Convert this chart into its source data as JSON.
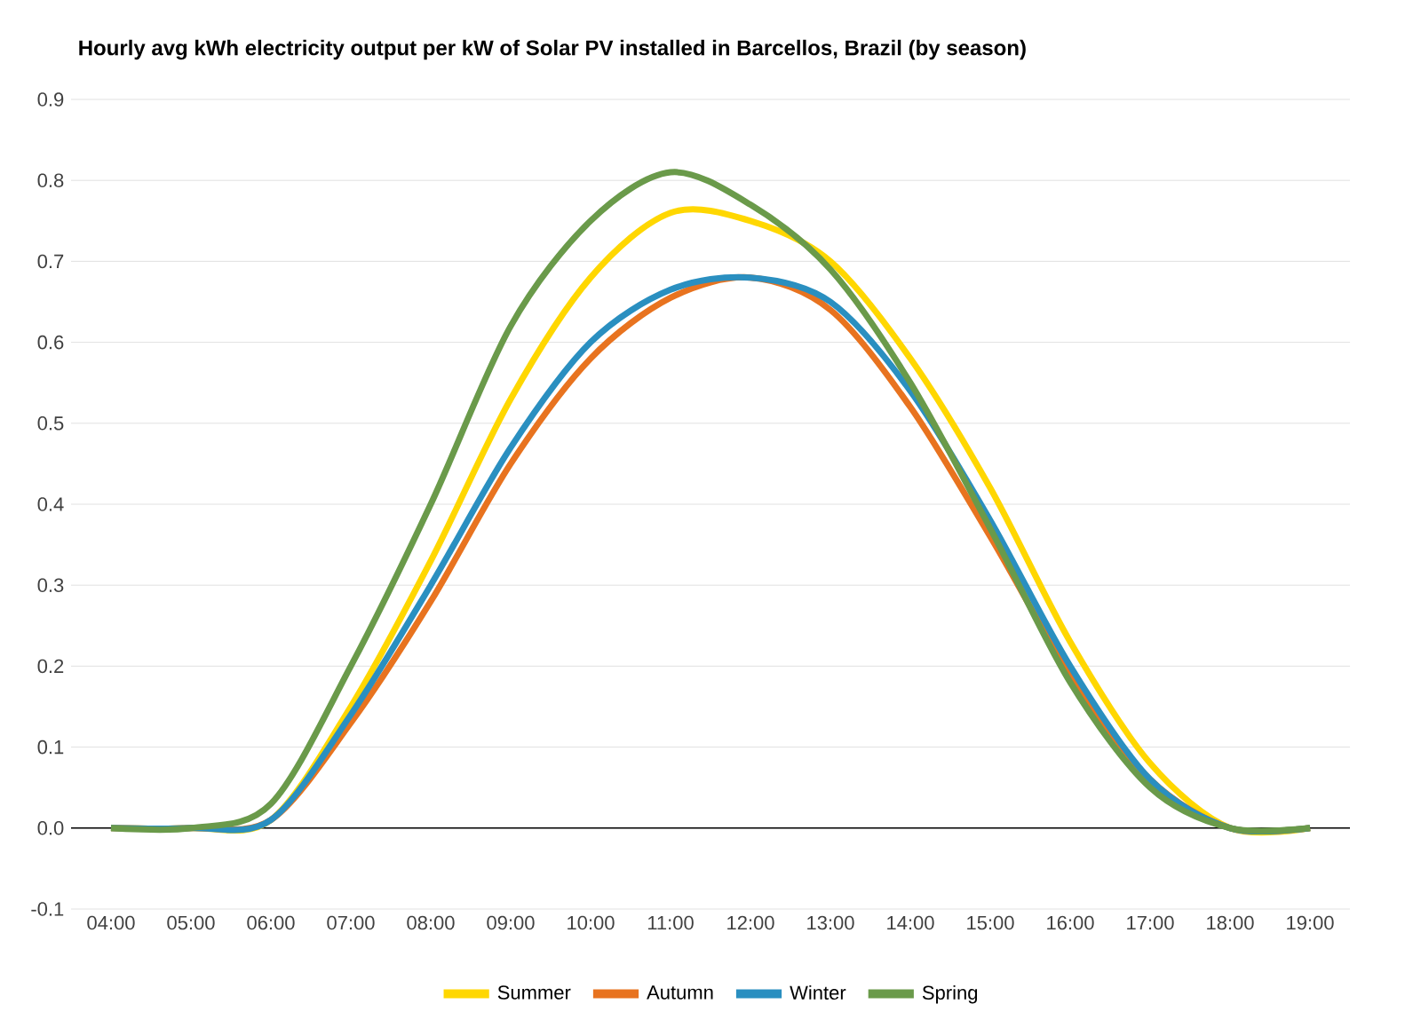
{
  "chart_data": {
    "type": "line",
    "title": "Hourly avg kWh electricity output per kW of Solar PV installed in Barcellos, Brazil (by season)",
    "x": [
      4,
      5,
      6,
      7,
      8,
      9,
      10,
      11,
      12,
      13,
      14,
      15,
      16,
      17,
      18,
      19
    ],
    "series": [
      {
        "name": "Summer",
        "color": "#ffd700",
        "values": [
          0,
          0,
          0.01,
          0.15,
          0.33,
          0.53,
          0.68,
          0.76,
          0.75,
          0.7,
          0.58,
          0.42,
          0.23,
          0.08,
          0,
          0
        ]
      },
      {
        "name": "Autumn",
        "color": "#e8731f",
        "values": [
          0,
          0,
          0.01,
          0.13,
          0.28,
          0.45,
          0.58,
          0.655,
          0.68,
          0.64,
          0.52,
          0.36,
          0.19,
          0.06,
          0,
          0
        ]
      },
      {
        "name": "Winter",
        "color": "#2a8fc0",
        "values": [
          0,
          0,
          0.01,
          0.14,
          0.3,
          0.47,
          0.6,
          0.665,
          0.68,
          0.65,
          0.54,
          0.38,
          0.2,
          0.06,
          0,
          0
        ]
      },
      {
        "name": "Spring",
        "color": "#6a9a4a",
        "values": [
          0,
          0,
          0.03,
          0.2,
          0.4,
          0.62,
          0.75,
          0.81,
          0.77,
          0.69,
          0.55,
          0.37,
          0.18,
          0.05,
          0,
          0
        ]
      }
    ],
    "xlim": [
      3.5,
      19.5
    ],
    "xticks": [
      {
        "value": 4,
        "label": "04:00"
      },
      {
        "value": 5,
        "label": "05:00"
      },
      {
        "value": 6,
        "label": "06:00"
      },
      {
        "value": 7,
        "label": "07:00"
      },
      {
        "value": 8,
        "label": "08:00"
      },
      {
        "value": 9,
        "label": "09:00"
      },
      {
        "value": 10,
        "label": "10:00"
      },
      {
        "value": 11,
        "label": "11:00"
      },
      {
        "value": 12,
        "label": "12:00"
      },
      {
        "value": 13,
        "label": "13:00"
      },
      {
        "value": 14,
        "label": "14:00"
      },
      {
        "value": 15,
        "label": "15:00"
      },
      {
        "value": 16,
        "label": "16:00"
      },
      {
        "value": 17,
        "label": "17:00"
      },
      {
        "value": 18,
        "label": "18:00"
      },
      {
        "value": 19,
        "label": "19:00"
      }
    ],
    "ylim": [
      -0.1,
      0.9
    ],
    "yticks": [
      {
        "value": -0.1,
        "label": "-0.1"
      },
      {
        "value": 0,
        "label": "0.0"
      },
      {
        "value": 0.1,
        "label": "0.1"
      },
      {
        "value": 0.2,
        "label": "0.2"
      },
      {
        "value": 0.3,
        "label": "0.3"
      },
      {
        "value": 0.4,
        "label": "0.4"
      },
      {
        "value": 0.5,
        "label": "0.5"
      },
      {
        "value": 0.6,
        "label": "0.6"
      },
      {
        "value": 0.7,
        "label": "0.7"
      },
      {
        "value": 0.8,
        "label": "0.8"
      },
      {
        "value": 0.9,
        "label": "0.9"
      }
    ],
    "ref_lines": [
      {
        "axis": "y",
        "value": 0,
        "color": "#000000"
      }
    ],
    "grid": "y",
    "legend": "bottom",
    "marker": "none",
    "line_style": "solid"
  }
}
